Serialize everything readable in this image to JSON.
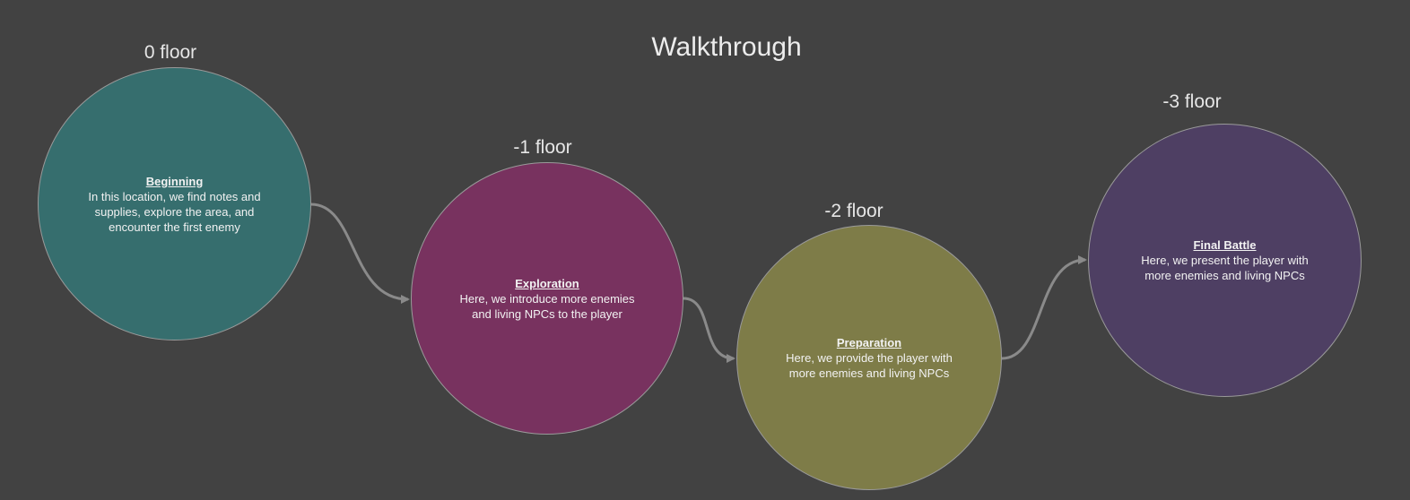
{
  "title": "Walkthrough",
  "colors": {
    "background": "#424242",
    "connector": "#8a8a8a"
  },
  "stages": [
    {
      "floor": "0 floor",
      "title": "Beginning",
      "description": "In this location, we find notes and supplies, explore the area, and encounter the first enemy",
      "color": "#366e6e"
    },
    {
      "floor": "-1 floor",
      "title": "Exploration",
      "description": "Here, we introduce more enemies and living NPCs to the player",
      "color": "#78325f"
    },
    {
      "floor": "-2 floor",
      "title": "Preparation",
      "description": "Here, we provide the player with more enemies and living NPCs",
      "color": "#7e7c48"
    },
    {
      "floor": "-3 floor",
      "title": "Final Battle",
      "description": "Here, we present the player with more enemies and living NPCs",
      "color": "#4e3f63"
    }
  ]
}
